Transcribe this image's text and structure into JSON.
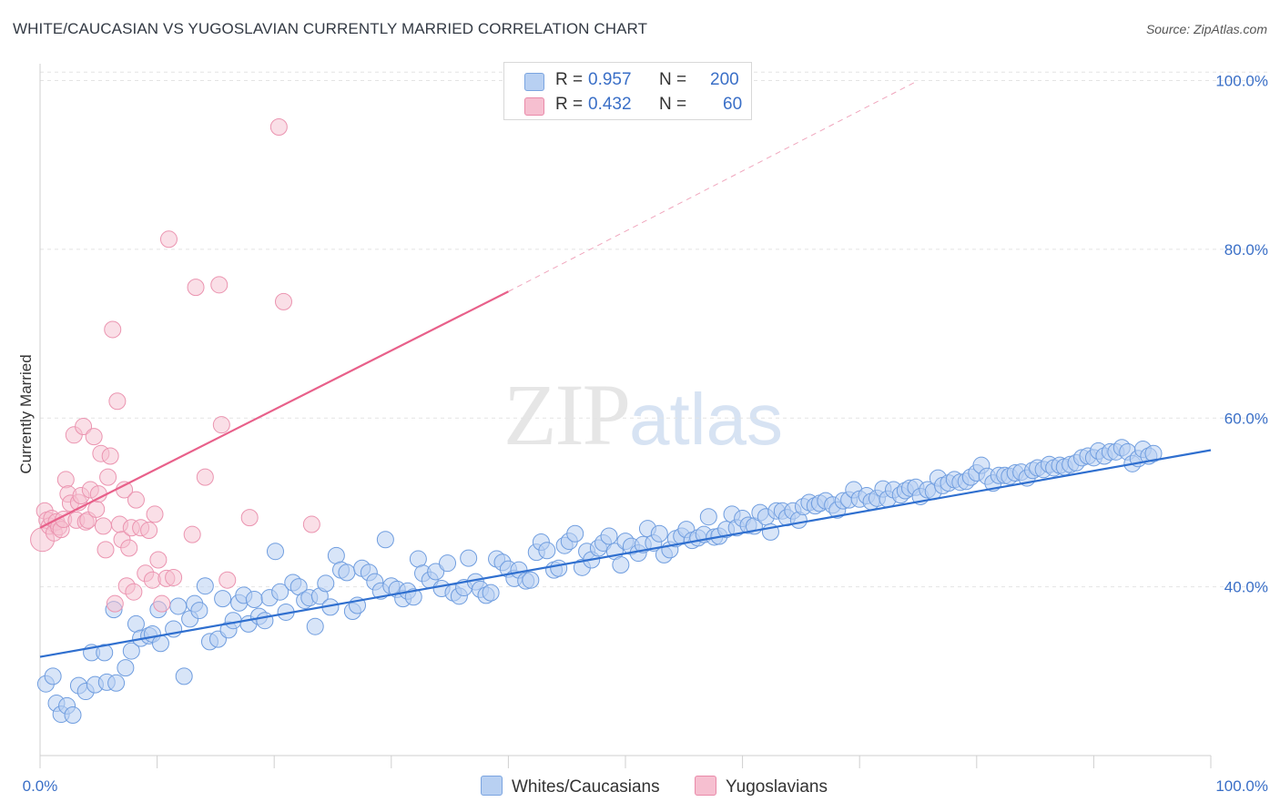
{
  "header": {
    "title": "WHITE/CAUCASIAN VS YUGOSLAVIAN CURRENTLY MARRIED CORRELATION CHART",
    "source": "Source: ZipAtlas.com"
  },
  "watermark": {
    "zip": "ZIP",
    "atlas": "atlas"
  },
  "legend": {
    "row1": {
      "r_label": "R =",
      "r_value": "0.957",
      "n_label": "N =",
      "n_value": "200"
    },
    "row2": {
      "r_label": "R =",
      "r_value": "0.432",
      "n_label": "N =",
      "n_value": "60"
    }
  },
  "bottom_legend": {
    "series1": "Whites/Caucasians",
    "series2": "Yugoslavians"
  },
  "colors": {
    "blue": "#3a78d8",
    "blue_fill": "#b8d0f2",
    "pink": "#e8608a",
    "pink_fill": "#f6bfd0",
    "tick": "#3a6fc7"
  },
  "chart_data": {
    "type": "scatter",
    "xlabel": "",
    "ylabel": "Currently Married",
    "xlim": [
      0,
      100
    ],
    "ylim": [
      20,
      102
    ],
    "x_tick_labels": [
      "0.0%",
      "100.0%"
    ],
    "y_ticks": [
      40,
      60,
      80,
      100
    ],
    "y_tick_labels": [
      "40.0%",
      "60.0%",
      "80.0%",
      "100.0%"
    ],
    "grid": true,
    "series": [
      {
        "name": "Whites/Caucasians",
        "color": "#3a78d8",
        "trend": {
          "x": [
            0,
            100
          ],
          "y": [
            31.7,
            56.2
          ]
        },
        "points": [
          [
            0.5,
            28.5
          ],
          [
            1.1,
            29.4
          ],
          [
            1.4,
            26.2
          ],
          [
            1.8,
            24.9
          ],
          [
            2.3,
            25.9
          ],
          [
            2.8,
            24.8
          ],
          [
            3.3,
            28.3
          ],
          [
            3.9,
            27.6
          ],
          [
            4.4,
            32.2
          ],
          [
            4.7,
            28.4
          ],
          [
            5.5,
            32.2
          ],
          [
            5.7,
            28.7
          ],
          [
            6.3,
            37.3
          ],
          [
            6.5,
            28.6
          ],
          [
            7.3,
            30.4
          ],
          [
            7.8,
            32.4
          ],
          [
            8.2,
            35.6
          ],
          [
            8.6,
            33.9
          ],
          [
            9.3,
            34.2
          ],
          [
            9.6,
            34.4
          ],
          [
            10.3,
            33.3
          ],
          [
            10.1,
            37.3
          ],
          [
            11.4,
            35.0
          ],
          [
            11.8,
            37.7
          ],
          [
            12.3,
            29.4
          ],
          [
            12.8,
            36.2
          ],
          [
            13.2,
            38.0
          ],
          [
            13.6,
            37.2
          ],
          [
            14.1,
            40.1
          ],
          [
            14.5,
            33.5
          ],
          [
            15.2,
            33.8
          ],
          [
            15.6,
            38.6
          ],
          [
            16.1,
            34.9
          ],
          [
            16.5,
            36.0
          ],
          [
            17.0,
            38.1
          ],
          [
            17.4,
            39.0
          ],
          [
            17.8,
            35.6
          ],
          [
            18.3,
            38.5
          ],
          [
            18.7,
            36.5
          ],
          [
            19.2,
            36.0
          ],
          [
            19.6,
            38.7
          ],
          [
            20.1,
            44.2
          ],
          [
            20.5,
            39.4
          ],
          [
            21.0,
            37.0
          ],
          [
            21.6,
            40.5
          ],
          [
            22.1,
            40.0
          ],
          [
            22.6,
            38.4
          ],
          [
            23.0,
            38.7
          ],
          [
            23.5,
            35.3
          ],
          [
            23.9,
            38.9
          ],
          [
            24.4,
            40.4
          ],
          [
            24.8,
            37.6
          ],
          [
            25.3,
            43.7
          ],
          [
            25.7,
            42.0
          ],
          [
            26.2,
            41.7
          ],
          [
            26.7,
            37.1
          ],
          [
            27.1,
            37.8
          ],
          [
            27.5,
            42.2
          ],
          [
            28.1,
            41.7
          ],
          [
            28.6,
            40.6
          ],
          [
            29.1,
            39.5
          ],
          [
            29.5,
            45.6
          ],
          [
            30.0,
            40.1
          ],
          [
            30.5,
            39.7
          ],
          [
            31.0,
            38.6
          ],
          [
            31.4,
            39.5
          ],
          [
            31.9,
            38.8
          ],
          [
            32.3,
            43.3
          ],
          [
            32.7,
            41.6
          ],
          [
            33.3,
            40.8
          ],
          [
            33.8,
            41.8
          ],
          [
            34.3,
            39.8
          ],
          [
            34.8,
            42.8
          ],
          [
            35.3,
            39.3
          ],
          [
            35.8,
            38.9
          ],
          [
            36.2,
            39.9
          ],
          [
            36.6,
            43.4
          ],
          [
            37.2,
            40.6
          ],
          [
            37.6,
            39.7
          ],
          [
            38.1,
            39.0
          ],
          [
            38.5,
            39.3
          ],
          [
            39.0,
            43.3
          ],
          [
            39.5,
            42.9
          ],
          [
            40.0,
            42.1
          ],
          [
            40.5,
            41.0
          ],
          [
            40.9,
            42.0
          ],
          [
            41.5,
            40.7
          ],
          [
            41.9,
            40.8
          ],
          [
            42.4,
            44.1
          ],
          [
            42.8,
            45.3
          ],
          [
            43.3,
            44.3
          ],
          [
            43.9,
            42.0
          ],
          [
            44.3,
            42.2
          ],
          [
            44.8,
            44.9
          ],
          [
            45.2,
            45.4
          ],
          [
            45.7,
            46.3
          ],
          [
            46.3,
            42.3
          ],
          [
            46.7,
            44.2
          ],
          [
            47.1,
            43.2
          ],
          [
            47.7,
            44.6
          ],
          [
            48.1,
            45.2
          ],
          [
            48.6,
            46.0
          ],
          [
            49.1,
            44.2
          ],
          [
            49.6,
            42.6
          ],
          [
            50.0,
            45.4
          ],
          [
            50.5,
            44.8
          ],
          [
            51.1,
            44.0
          ],
          [
            51.5,
            45.0
          ],
          [
            51.9,
            46.9
          ],
          [
            52.4,
            45.2
          ],
          [
            52.9,
            46.3
          ],
          [
            53.3,
            43.8
          ],
          [
            53.8,
            44.4
          ],
          [
            54.3,
            45.7
          ],
          [
            54.8,
            46.0
          ],
          [
            55.2,
            46.8
          ],
          [
            55.7,
            45.5
          ],
          [
            56.2,
            45.8
          ],
          [
            56.7,
            46.2
          ],
          [
            57.1,
            48.3
          ],
          [
            57.6,
            45.9
          ],
          [
            58.0,
            46.0
          ],
          [
            58.6,
            46.8
          ],
          [
            59.1,
            48.6
          ],
          [
            59.5,
            47.0
          ],
          [
            60.0,
            48.1
          ],
          [
            60.5,
            47.3
          ],
          [
            61.0,
            47.2
          ],
          [
            61.5,
            48.8
          ],
          [
            62.0,
            48.3
          ],
          [
            62.4,
            46.5
          ],
          [
            62.9,
            49.0
          ],
          [
            63.4,
            49.0
          ],
          [
            63.8,
            48.2
          ],
          [
            64.3,
            49.0
          ],
          [
            64.8,
            47.9
          ],
          [
            65.2,
            49.5
          ],
          [
            65.7,
            50.0
          ],
          [
            66.2,
            49.6
          ],
          [
            66.6,
            49.9
          ],
          [
            67.1,
            50.2
          ],
          [
            67.7,
            49.7
          ],
          [
            68.1,
            49.1
          ],
          [
            68.6,
            50.2
          ],
          [
            69.1,
            50.3
          ],
          [
            69.5,
            51.5
          ],
          [
            70.0,
            50.4
          ],
          [
            70.6,
            50.8
          ],
          [
            71.0,
            50.1
          ],
          [
            71.5,
            50.5
          ],
          [
            72.0,
            51.6
          ],
          [
            72.4,
            50.4
          ],
          [
            72.9,
            51.5
          ],
          [
            73.5,
            50.9
          ],
          [
            73.9,
            51.4
          ],
          [
            74.3,
            51.7
          ],
          [
            74.8,
            51.8
          ],
          [
            75.2,
            50.7
          ],
          [
            75.8,
            51.5
          ],
          [
            76.3,
            51.3
          ],
          [
            76.7,
            52.9
          ],
          [
            77.1,
            52.0
          ],
          [
            77.6,
            52.3
          ],
          [
            78.1,
            52.7
          ],
          [
            78.6,
            52.4
          ],
          [
            79.1,
            52.5
          ],
          [
            79.5,
            53.0
          ],
          [
            80.0,
            53.5
          ],
          [
            80.4,
            54.4
          ],
          [
            80.9,
            53.1
          ],
          [
            81.4,
            52.3
          ],
          [
            81.9,
            53.2
          ],
          [
            82.4,
            53.2
          ],
          [
            82.8,
            53.1
          ],
          [
            83.3,
            53.5
          ],
          [
            83.8,
            53.6
          ],
          [
            84.3,
            52.9
          ],
          [
            84.8,
            53.8
          ],
          [
            85.2,
            54.1
          ],
          [
            85.7,
            53.9
          ],
          [
            86.2,
            54.5
          ],
          [
            86.6,
            54.1
          ],
          [
            87.1,
            54.4
          ],
          [
            87.5,
            54.2
          ],
          [
            88.0,
            54.5
          ],
          [
            88.5,
            54.7
          ],
          [
            89.0,
            55.3
          ],
          [
            89.5,
            55.5
          ],
          [
            90.0,
            55.3
          ],
          [
            90.4,
            56.1
          ],
          [
            90.9,
            55.5
          ],
          [
            91.4,
            56.0
          ],
          [
            91.9,
            56.0
          ],
          [
            92.4,
            56.5
          ],
          [
            92.9,
            56.0
          ],
          [
            93.3,
            54.6
          ],
          [
            93.8,
            55.2
          ],
          [
            94.2,
            56.3
          ],
          [
            94.7,
            55.5
          ],
          [
            95.1,
            55.8
          ]
        ]
      },
      {
        "name": "Yugoslavians",
        "color": "#e8608a",
        "trend": {
          "x": [
            0,
            40
          ],
          "y": [
            47.0,
            75.0
          ]
        },
        "trend_dashed": {
          "x": [
            40,
            75
          ],
          "y": [
            75.0,
            100.0
          ]
        },
        "points": [
          [
            0.2,
            45.6
          ],
          [
            0.4,
            49.0
          ],
          [
            0.6,
            47.9
          ],
          [
            0.8,
            47.2
          ],
          [
            1.0,
            48.1
          ],
          [
            1.2,
            46.4
          ],
          [
            1.4,
            47.7
          ],
          [
            1.6,
            47.1
          ],
          [
            1.8,
            46.8
          ],
          [
            2.0,
            48.0
          ],
          [
            2.2,
            52.7
          ],
          [
            2.4,
            51.0
          ],
          [
            2.6,
            49.9
          ],
          [
            2.9,
            58.0
          ],
          [
            3.1,
            47.9
          ],
          [
            3.3,
            50.0
          ],
          [
            3.5,
            50.8
          ],
          [
            3.7,
            59.0
          ],
          [
            3.9,
            47.7
          ],
          [
            4.1,
            47.9
          ],
          [
            4.3,
            51.5
          ],
          [
            4.6,
            57.8
          ],
          [
            4.8,
            49.2
          ],
          [
            5.0,
            51.0
          ],
          [
            5.2,
            55.8
          ],
          [
            5.4,
            47.2
          ],
          [
            5.6,
            44.4
          ],
          [
            5.8,
            53.0
          ],
          [
            6.0,
            55.5
          ],
          [
            6.2,
            70.5
          ],
          [
            6.4,
            38.0
          ],
          [
            6.6,
            62.0
          ],
          [
            6.8,
            47.4
          ],
          [
            7.0,
            45.6
          ],
          [
            7.2,
            51.5
          ],
          [
            7.4,
            40.1
          ],
          [
            7.6,
            44.6
          ],
          [
            7.8,
            47.0
          ],
          [
            8.0,
            39.4
          ],
          [
            8.2,
            50.3
          ],
          [
            8.6,
            47.0
          ],
          [
            9.0,
            41.6
          ],
          [
            9.3,
            46.7
          ],
          [
            9.6,
            40.8
          ],
          [
            9.8,
            48.6
          ],
          [
            10.1,
            43.2
          ],
          [
            10.4,
            38.0
          ],
          [
            10.8,
            41.0
          ],
          [
            11.0,
            81.2
          ],
          [
            11.4,
            41.1
          ],
          [
            13.0,
            46.2
          ],
          [
            13.3,
            75.5
          ],
          [
            14.1,
            53.0
          ],
          [
            15.3,
            75.8
          ],
          [
            15.5,
            59.2
          ],
          [
            16.0,
            40.8
          ],
          [
            17.9,
            48.2
          ],
          [
            20.4,
            94.5
          ],
          [
            20.8,
            73.8
          ],
          [
            23.2,
            47.4
          ]
        ]
      }
    ]
  }
}
